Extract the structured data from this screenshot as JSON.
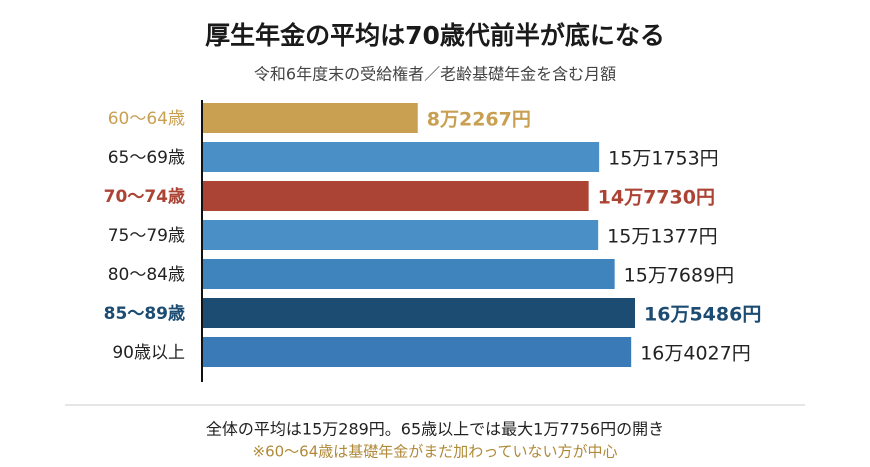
{
  "chart_data": {
    "type": "bar",
    "orientation": "horizontal",
    "title": "厚生年金の平均は70歳代前半が底になる",
    "subtitle": "令和6年度末の受給権者／老齢基礎年金を含む月額",
    "categories": [
      "60〜64歳",
      "65〜69歳",
      "70〜74歳",
      "75〜79歳",
      "80〜84歳",
      "85〜89歳",
      "90歳以上"
    ],
    "values": [
      82267,
      151753,
      147730,
      151377,
      157689,
      165486,
      164027
    ],
    "value_labels": [
      "8万2267円",
      "15万1753円",
      "14万7730円",
      "15万1377円",
      "15万7689円",
      "16万5486円",
      "16万4027円"
    ],
    "colors": [
      "#c9a052",
      "#4a90c6",
      "#ac4436",
      "#4a90c6",
      "#3f84bd",
      "#1d4c72",
      "#3a7bb7"
    ],
    "highlight": [
      true,
      false,
      true,
      false,
      false,
      true,
      false
    ],
    "notes": [
      "全体の平均は15万289円。65歳以上では最大1万7756円の開き",
      "※60〜64歳は基礎年金がまだ加わっていない方が中心"
    ]
  }
}
